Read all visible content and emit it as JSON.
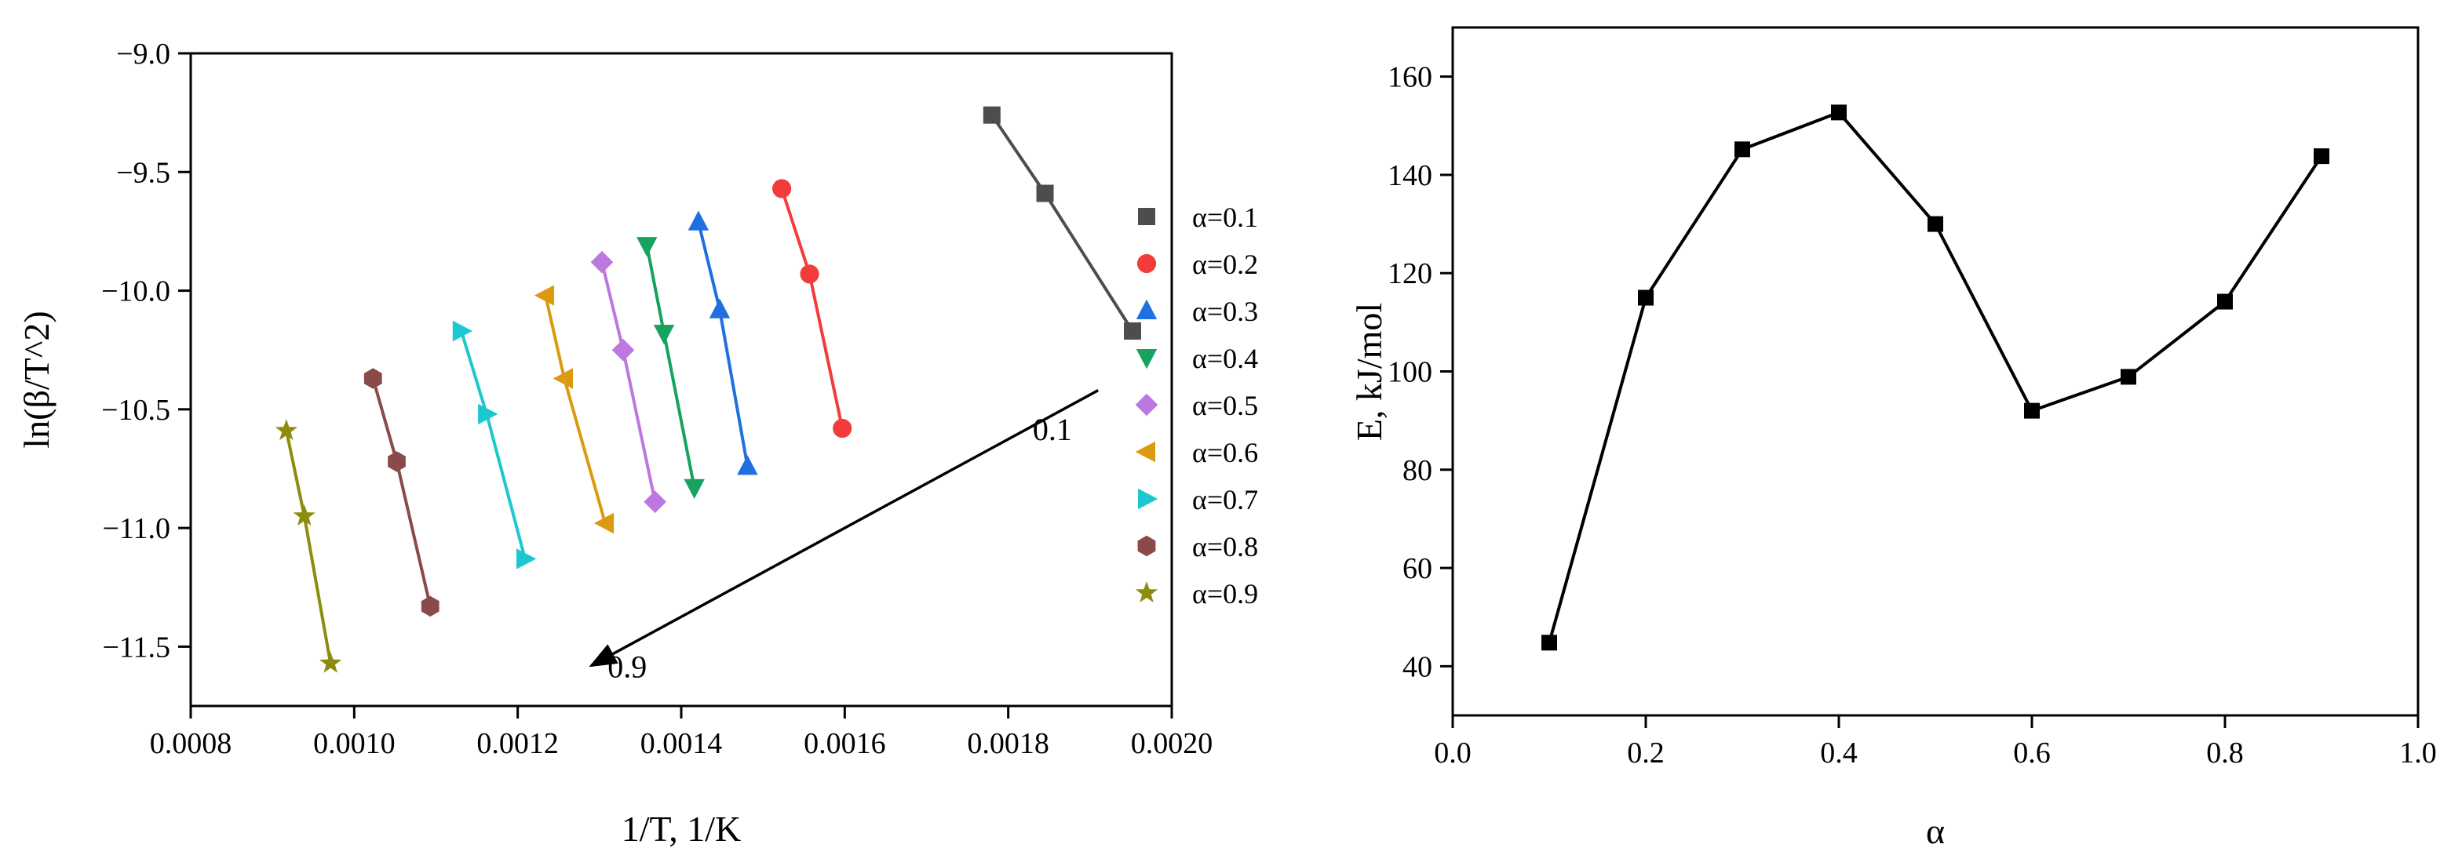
{
  "chart_data": [
    {
      "type": "scatter",
      "title": "",
      "xlabel": "1/T, 1/K",
      "ylabel": "ln(β/T^2)",
      "xlim": [
        0.0008,
        0.002
      ],
      "ylim": [
        -11.75,
        -9.0
      ],
      "xticks": [
        0.0008,
        0.001,
        0.0012,
        0.0014,
        0.0016,
        0.0018,
        0.002
      ],
      "xtick_labels": [
        "0.0008",
        "0.0010",
        "0.0012",
        "0.0014",
        "0.0016",
        "0.0018",
        "0.0020"
      ],
      "yticks": [
        -9.0,
        -9.5,
        -10.0,
        -10.5,
        -11.0,
        -11.5
      ],
      "ytick_labels": [
        "−9.0",
        "−9.5",
        "−10.0",
        "−10.5",
        "−11.0",
        "−11.5"
      ],
      "legend_position": "right",
      "series": [
        {
          "name": "α=0.1",
          "marker": "square",
          "color": "#4d4d4d",
          "x": [
            0.00178,
            0.001845,
            0.001952
          ],
          "y": [
            -9.26,
            -9.59,
            -10.17
          ]
        },
        {
          "name": "α=0.2",
          "marker": "circle",
          "color": "#f23c3c",
          "x": [
            0.001523,
            0.001557,
            0.001597
          ],
          "y": [
            -9.57,
            -9.93,
            -10.58
          ]
        },
        {
          "name": "α=0.3",
          "marker": "triangle-up",
          "color": "#1f6fe0",
          "x": [
            0.001421,
            0.001447,
            0.001481
          ],
          "y": [
            -9.71,
            -10.08,
            -10.74
          ]
        },
        {
          "name": "α=0.4",
          "marker": "triangle-down",
          "color": "#17a35f",
          "x": [
            0.001358,
            0.001379,
            0.001416
          ],
          "y": [
            -9.81,
            -10.18,
            -10.83
          ]
        },
        {
          "name": "α=0.5",
          "marker": "diamond",
          "color": "#bd78e0",
          "x": [
            0.001303,
            0.001329,
            0.001368
          ],
          "y": [
            -9.88,
            -10.25,
            -10.89
          ]
        },
        {
          "name": "α=0.6",
          "marker": "triangle-left",
          "color": "#dc9a10",
          "x": [
            0.001234,
            0.001257,
            0.001307
          ],
          "y": [
            -10.02,
            -10.37,
            -10.98
          ]
        },
        {
          "name": "α=0.7",
          "marker": "triangle-right",
          "color": "#1cc8cf",
          "x": [
            0.001131,
            0.001162,
            0.001209
          ],
          "y": [
            -10.17,
            -10.52,
            -11.13
          ]
        },
        {
          "name": "α=0.8",
          "marker": "hexagon",
          "color": "#8b4a4a",
          "x": [
            0.001023,
            0.001052,
            0.001093
          ],
          "y": [
            -10.37,
            -10.72,
            -11.33
          ]
        },
        {
          "name": "α=0.9",
          "marker": "star",
          "color": "#8c8c0e",
          "x": [
            0.000917,
            0.000939,
            0.000971
          ],
          "y": [
            -10.59,
            -10.95,
            -11.57
          ]
        }
      ],
      "annotations": [
        {
          "text": "0.1",
          "x": 0.00183,
          "y": -10.63
        },
        {
          "text": "0.9",
          "x": 0.00131,
          "y": -11.63
        }
      ],
      "arrow": {
        "from": [
          0.00191,
          -10.42
        ],
        "to": [
          0.00129,
          -11.58
        ]
      }
    },
    {
      "type": "line",
      "title": "",
      "xlabel": "α",
      "ylabel": "E, kJ/mol",
      "xlim": [
        0.0,
        1.0
      ],
      "ylim": [
        30,
        170
      ],
      "xticks": [
        0.0,
        0.2,
        0.4,
        0.6,
        0.8,
        1.0
      ],
      "xtick_labels": [
        "0.0",
        "0.2",
        "0.4",
        "0.6",
        "0.8",
        "1.0"
      ],
      "yticks": [
        40,
        60,
        80,
        100,
        120,
        140,
        160
      ],
      "ytick_labels": [
        "40",
        "60",
        "80",
        "100",
        "120",
        "140",
        "160"
      ],
      "series": [
        {
          "name": "E",
          "marker": "square",
          "color": "#000000",
          "x": [
            0.1,
            0.2,
            0.3,
            0.4,
            0.5,
            0.6,
            0.7,
            0.8,
            0.9
          ],
          "y": [
            44.8,
            115.0,
            145.2,
            152.7,
            130.0,
            92.0,
            98.9,
            114.2,
            143.8
          ]
        }
      ]
    }
  ]
}
